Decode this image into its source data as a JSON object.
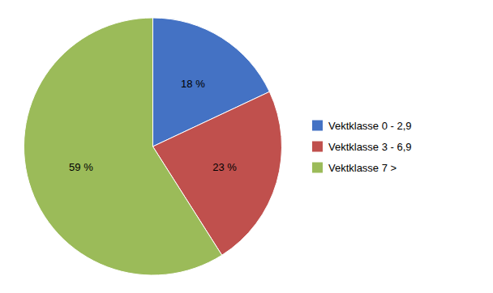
{
  "chart_data": {
    "type": "pie",
    "categories": [
      "Vektklasse 0 - 2,9",
      "Vektklasse 3 - 6,9",
      "Vektklasse 7 >"
    ],
    "values": [
      18,
      23,
      59
    ],
    "value_labels": [
      "18 %",
      "23 %",
      "59 %"
    ],
    "colors": [
      "#4472C4",
      "#C0504D",
      "#9BBB59"
    ],
    "data_labels": true,
    "legend": "right"
  }
}
